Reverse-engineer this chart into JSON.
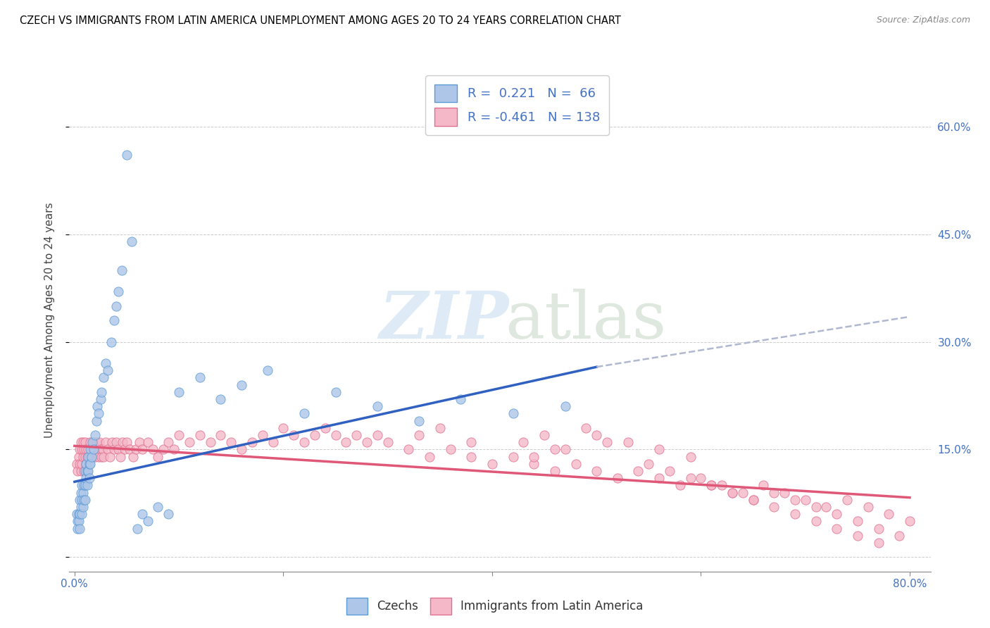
{
  "title": "CZECH VS IMMIGRANTS FROM LATIN AMERICA UNEMPLOYMENT AMONG AGES 20 TO 24 YEARS CORRELATION CHART",
  "source": "Source: ZipAtlas.com",
  "ylabel": "Unemployment Among Ages 20 to 24 years",
  "xlim": [
    -0.005,
    0.82
  ],
  "ylim": [
    -0.02,
    0.68
  ],
  "xtick_positions": [
    0.0,
    0.2,
    0.4,
    0.6,
    0.8
  ],
  "ytick_positions": [
    0.0,
    0.15,
    0.3,
    0.45,
    0.6
  ],
  "yticklabels_right": [
    "",
    "15.0%",
    "30.0%",
    "45.0%",
    "60.0%"
  ],
  "czechs_color": "#aec6e8",
  "czechs_edge_color": "#5b9bd5",
  "latin_color": "#f4b8c8",
  "latin_edge_color": "#e07090",
  "trend_blue_color": "#3060c0",
  "trend_pink_color": "#e05878",
  "trend_dashed_color": "#b0b8d0",
  "R_czech": 0.221,
  "N_czech": 66,
  "R_latin": -0.461,
  "N_latin": 138,
  "grid_color": "#cccccc",
  "czechs_x": [
    0.002,
    0.003,
    0.003,
    0.004,
    0.004,
    0.005,
    0.005,
    0.005,
    0.006,
    0.006,
    0.007,
    0.007,
    0.007,
    0.008,
    0.008,
    0.009,
    0.009,
    0.01,
    0.01,
    0.01,
    0.011,
    0.011,
    0.012,
    0.012,
    0.013,
    0.013,
    0.014,
    0.014,
    0.015,
    0.015,
    0.016,
    0.017,
    0.018,
    0.02,
    0.021,
    0.022,
    0.023,
    0.025,
    0.026,
    0.028,
    0.03,
    0.032,
    0.035,
    0.038,
    0.04,
    0.042,
    0.045,
    0.05,
    0.055,
    0.06,
    0.065,
    0.07,
    0.08,
    0.09,
    0.1,
    0.12,
    0.14,
    0.16,
    0.185,
    0.22,
    0.25,
    0.29,
    0.33,
    0.37,
    0.42,
    0.47
  ],
  "czechs_y": [
    0.06,
    0.05,
    0.04,
    0.06,
    0.05,
    0.08,
    0.06,
    0.04,
    0.09,
    0.07,
    0.1,
    0.08,
    0.06,
    0.09,
    0.07,
    0.1,
    0.08,
    0.12,
    0.1,
    0.08,
    0.13,
    0.11,
    0.12,
    0.1,
    0.14,
    0.12,
    0.13,
    0.11,
    0.15,
    0.13,
    0.14,
    0.16,
    0.15,
    0.17,
    0.19,
    0.21,
    0.2,
    0.22,
    0.23,
    0.25,
    0.27,
    0.26,
    0.3,
    0.33,
    0.35,
    0.37,
    0.4,
    0.56,
    0.44,
    0.04,
    0.06,
    0.05,
    0.07,
    0.06,
    0.23,
    0.25,
    0.22,
    0.24,
    0.26,
    0.2,
    0.23,
    0.21,
    0.19,
    0.22,
    0.2,
    0.21
  ],
  "latin_x": [
    0.002,
    0.003,
    0.004,
    0.005,
    0.005,
    0.006,
    0.006,
    0.007,
    0.007,
    0.008,
    0.008,
    0.009,
    0.009,
    0.01,
    0.01,
    0.011,
    0.011,
    0.012,
    0.012,
    0.013,
    0.014,
    0.015,
    0.015,
    0.016,
    0.017,
    0.018,
    0.019,
    0.02,
    0.021,
    0.022,
    0.023,
    0.024,
    0.025,
    0.026,
    0.027,
    0.028,
    0.03,
    0.032,
    0.034,
    0.036,
    0.038,
    0.04,
    0.042,
    0.044,
    0.046,
    0.048,
    0.05,
    0.053,
    0.056,
    0.059,
    0.062,
    0.065,
    0.07,
    0.075,
    0.08,
    0.085,
    0.09,
    0.095,
    0.1,
    0.11,
    0.12,
    0.13,
    0.14,
    0.15,
    0.16,
    0.17,
    0.18,
    0.19,
    0.2,
    0.21,
    0.22,
    0.23,
    0.24,
    0.25,
    0.26,
    0.27,
    0.28,
    0.29,
    0.3,
    0.32,
    0.34,
    0.36,
    0.38,
    0.4,
    0.42,
    0.44,
    0.46,
    0.48,
    0.5,
    0.52,
    0.54,
    0.56,
    0.58,
    0.6,
    0.62,
    0.64,
    0.66,
    0.68,
    0.7,
    0.72,
    0.74,
    0.76,
    0.78,
    0.8,
    0.61,
    0.63,
    0.65,
    0.67,
    0.69,
    0.71,
    0.73,
    0.75,
    0.77,
    0.79,
    0.55,
    0.57,
    0.59,
    0.61,
    0.63,
    0.65,
    0.67,
    0.69,
    0.71,
    0.73,
    0.75,
    0.77,
    0.33,
    0.35,
    0.38,
    0.5,
    0.53,
    0.56,
    0.59,
    0.49,
    0.43,
    0.45,
    0.47,
    0.51,
    0.44,
    0.46
  ],
  "latin_y": [
    0.13,
    0.12,
    0.14,
    0.15,
    0.13,
    0.16,
    0.12,
    0.15,
    0.13,
    0.16,
    0.14,
    0.15,
    0.12,
    0.16,
    0.14,
    0.15,
    0.13,
    0.14,
    0.12,
    0.15,
    0.14,
    0.16,
    0.14,
    0.15,
    0.14,
    0.16,
    0.15,
    0.14,
    0.16,
    0.15,
    0.14,
    0.16,
    0.15,
    0.14,
    0.15,
    0.14,
    0.16,
    0.15,
    0.14,
    0.16,
    0.15,
    0.16,
    0.15,
    0.14,
    0.16,
    0.15,
    0.16,
    0.15,
    0.14,
    0.15,
    0.16,
    0.15,
    0.16,
    0.15,
    0.14,
    0.15,
    0.16,
    0.15,
    0.17,
    0.16,
    0.17,
    0.16,
    0.17,
    0.16,
    0.15,
    0.16,
    0.17,
    0.16,
    0.18,
    0.17,
    0.16,
    0.17,
    0.18,
    0.17,
    0.16,
    0.17,
    0.16,
    0.17,
    0.16,
    0.15,
    0.14,
    0.15,
    0.14,
    0.13,
    0.14,
    0.13,
    0.12,
    0.13,
    0.12,
    0.11,
    0.12,
    0.11,
    0.1,
    0.11,
    0.1,
    0.09,
    0.1,
    0.09,
    0.08,
    0.07,
    0.08,
    0.07,
    0.06,
    0.05,
    0.1,
    0.09,
    0.08,
    0.09,
    0.08,
    0.07,
    0.06,
    0.05,
    0.04,
    0.03,
    0.13,
    0.12,
    0.11,
    0.1,
    0.09,
    0.08,
    0.07,
    0.06,
    0.05,
    0.04,
    0.03,
    0.02,
    0.17,
    0.18,
    0.16,
    0.17,
    0.16,
    0.15,
    0.14,
    0.18,
    0.16,
    0.17,
    0.15,
    0.16,
    0.14,
    0.15
  ]
}
